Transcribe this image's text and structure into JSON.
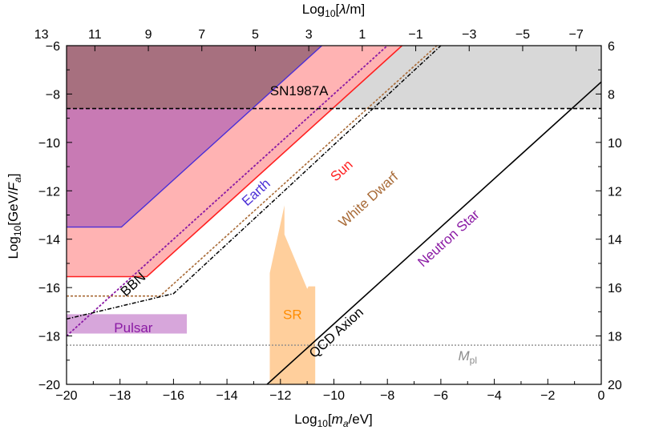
{
  "chart_data": {
    "type": "exclusion-plot",
    "xlabel": "Log10[ma/eV]",
    "ylabel": "Log10[GeV/Fa]",
    "top_xlabel": "Log10[λ/m]",
    "xlim": [
      -20,
      0
    ],
    "ylim": [
      -20,
      -6
    ],
    "x_ticks": [
      -20,
      -18,
      -16,
      -14,
      -12,
      -10,
      -8,
      -6,
      -4,
      -2,
      0
    ],
    "y_ticks": [
      -6,
      -8,
      -10,
      -12,
      -14,
      -16,
      -18,
      -20
    ],
    "top_ticks": [
      {
        "label": "13",
        "x": -20.94
      },
      {
        "label": "11",
        "x": -18.94
      },
      {
        "label": "9",
        "x": -16.94
      },
      {
        "label": "7",
        "x": -14.94
      },
      {
        "label": "5",
        "x": -12.94
      },
      {
        "label": "3",
        "x": -10.94
      },
      {
        "label": "1",
        "x": -8.94
      },
      {
        "label": "−1",
        "x": -6.94
      },
      {
        "label": "−3",
        "x": -4.94
      },
      {
        "label": "−5",
        "x": -2.94
      },
      {
        "label": "−7",
        "x": -0.94
      }
    ],
    "colors": {
      "sn1987a_fill": "#d8d8d8",
      "earth_fill": "#a7707f",
      "earth_line": "#4b2fd6",
      "earth_purple": "#c87ab4",
      "sun_line": "#ff2020",
      "sun_fill": "#ffb3b3",
      "white_dwarf": "#a86a36",
      "neutron_star": "#8a1aa4",
      "qcd_axion": "#000000",
      "pulsar": "#d7a6db",
      "sr": "#ffcf9c",
      "mpl": "#8c8c8c",
      "bbn": "#000000"
    },
    "regions": [
      {
        "name": "SN1987A",
        "label": "SN1987A",
        "y_bound": -8.6
      },
      {
        "name": "Earth",
        "label": "Earth",
        "plateau": -13.5,
        "slope": 1,
        "intercept": 4.45
      },
      {
        "name": "Sun",
        "label": "Sun",
        "plateau": -15.55,
        "slope": 1,
        "intercept": 1.45
      },
      {
        "name": "White Dwarf",
        "label": "White Dwarf",
        "plateau": -16.35,
        "slope": 1,
        "intercept": 0.15
      },
      {
        "name": "Neutron Star",
        "label": "Neutron Star",
        "plateau": -18.0,
        "slope": 1,
        "intercept": 2.0
      },
      {
        "name": "QCD Axion",
        "label": "QCD Axion",
        "slope": 1,
        "intercept": -7.5
      },
      {
        "name": "Pulsar",
        "label": "Pulsar",
        "x_range": [
          -20,
          -15.5
        ],
        "y_range": [
          -17.1,
          -17.9
        ]
      },
      {
        "name": "SR",
        "label": "SR",
        "x_range": [
          -12.4,
          -10.7
        ],
        "y_range": [
          -20,
          -12.6
        ]
      },
      {
        "name": "M_pl",
        "label": "pl",
        "label_main": "M",
        "y": -18.38
      },
      {
        "name": "BBN",
        "label": "BBN",
        "points": [
          [
            -20,
            -17.3
          ],
          [
            -16,
            -16.25
          ],
          [
            -6,
            -6
          ]
        ]
      }
    ]
  }
}
